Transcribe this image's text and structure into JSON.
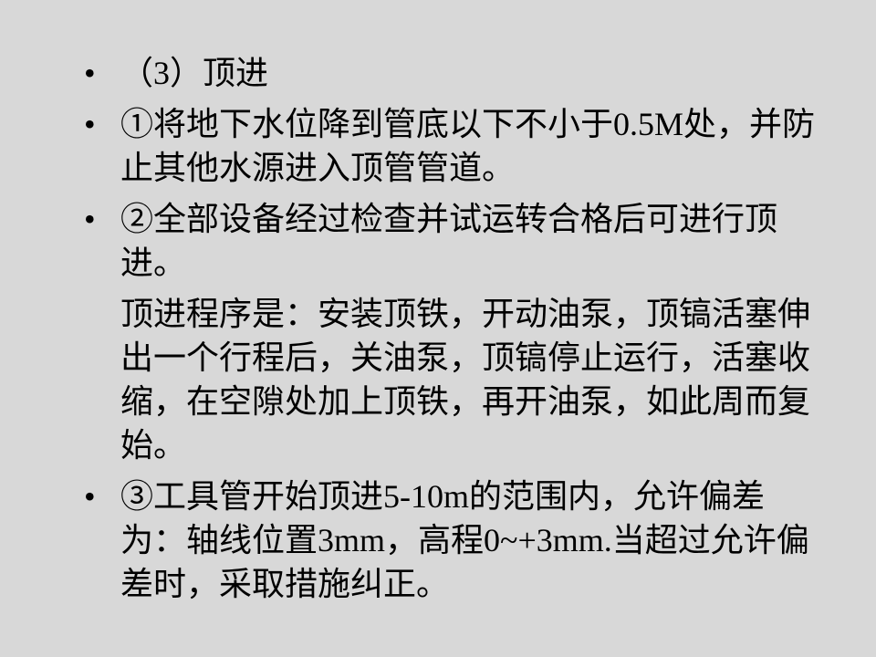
{
  "document": {
    "bullet_char": "•",
    "font_size_pt": 27,
    "line_height_pt": 36,
    "text_color": "#000000",
    "background_color": "#d8d8d8",
    "font_family": "SimSun",
    "items": [
      {
        "text": "（3）顶进"
      },
      {
        "text": "①将地下水位降到管底以下不小于0.5M处，并防止其他水源进入顶管管道。"
      },
      {
        "text": "②全部设备经过检查并试运转合格后可进行顶进。",
        "continuation": "顶进程序是：安装顶铁，开动油泵，顶镐活塞伸出一个行程后，关油泵，顶镐停止运行，活塞收缩，在空隙处加上顶铁，再开油泵，如此周而复始。"
      },
      {
        "text": "③工具管开始顶进5-10m的范围内，允许偏差为：轴线位置3mm，高程0~+3mm.当超过允许偏差时，采取措施纠正。"
      }
    ]
  }
}
